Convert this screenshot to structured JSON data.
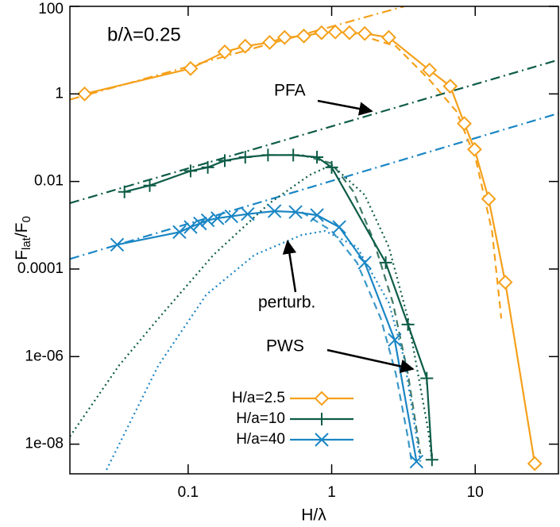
{
  "chart_data": {
    "type": "line",
    "xlabel": "H/λ",
    "ylabel": [
      "F",
      "lat",
      "/F",
      "0"
    ],
    "xscale": "log",
    "yscale": "log",
    "xlim": [
      0.015,
      38
    ],
    "ylim": [
      2.1e-09,
      100
    ],
    "xticks": [
      0.1,
      1,
      10
    ],
    "yticks": [
      100,
      1,
      0.01,
      0.0001,
      {
        "value": 1e-06,
        "label": "1e-06"
      },
      {
        "value": 1e-08,
        "label": "1e-08"
      }
    ],
    "legend": "lower center",
    "annotations": [
      "b/λ=0.25",
      "PFA",
      "perturb.",
      "PWS"
    ],
    "series": [
      {
        "name": "H/a=2.5",
        "color": "#f5a01a",
        "marker": "diamond",
        "x": [
          0.019,
          0.104,
          0.18,
          0.25,
          0.37,
          0.47,
          0.64,
          0.85,
          1.06,
          1.33,
          1.7,
          2.5,
          4.8,
          6.7,
          8.4,
          9.9,
          12.4,
          16.2,
          26
        ],
        "values": [
          1.0,
          3.8,
          9.1,
          12.3,
          15,
          19.5,
          21,
          25,
          26,
          25,
          24,
          19.5,
          3.5,
          1.5,
          0.21,
          0.054,
          0.004,
          5e-05,
          3.6e-09
        ]
      },
      {
        "name": "H/a=10",
        "color": "#0d5c47",
        "marker": "plus",
        "x": [
          0.036,
          0.054,
          0.104,
          0.137,
          0.18,
          0.25,
          0.36,
          0.54,
          0.79,
          1.0,
          2.38,
          3.4,
          4.6,
          5.0
        ],
        "values": [
          0.0058,
          0.0081,
          0.0174,
          0.021,
          0.03,
          0.036,
          0.04,
          0.04,
          0.036,
          0.021,
          0.00014,
          5.4e-06,
          3.2e-07,
          4.4e-09
        ]
      },
      {
        "name": "H/a=40",
        "color": "#1a86c4",
        "marker": "cross",
        "x": [
          0.032,
          0.087,
          0.104,
          0.121,
          0.137,
          0.16,
          0.2,
          0.26,
          0.4,
          0.56,
          0.79,
          1.13,
          1.7,
          2.75,
          3.9
        ],
        "values": [
          0.00036,
          0.0007,
          0.00091,
          0.0011,
          0.0013,
          0.00145,
          0.0016,
          0.0018,
          0.0021,
          0.002,
          0.0017,
          0.00091,
          0.00014,
          2.4e-06,
          4e-09
        ]
      }
    ],
    "curves": [
      {
        "color": "#f5a01a",
        "style": "dashdot",
        "x": [
          0.015,
          3.2
        ],
        "values": [
          0.74,
          100
        ]
      },
      {
        "color": "#0d5c47",
        "style": "dashdot",
        "x": [
          0.015,
          38
        ],
        "values": [
          0.0032,
          6
        ]
      },
      {
        "color": "#1a86c4",
        "style": "dashdot",
        "x": [
          0.015,
          38
        ],
        "values": [
          0.00017,
          0.36
        ]
      },
      {
        "color": "#f5a01a",
        "style": "dashed",
        "x": [
          1.33,
          2.8,
          4.8,
          7.4,
          10.1,
          13.1,
          15.2
        ],
        "values": [
          26,
          12.3,
          2.1,
          0.4,
          0.032,
          0.00074,
          7.4e-06
        ]
      },
      {
        "color": "#3f7a66",
        "style": "dashed",
        "x": [
          0.62,
          1,
          1.41,
          1.94,
          2.67,
          3.4,
          4.15
        ],
        "values": [
          0.04,
          0.026,
          0.006,
          0.00049,
          1.7e-05,
          4e-07,
          6e-09
        ]
      },
      {
        "color": "#3a98c8",
        "style": "dashed",
        "x": [
          0.62,
          1,
          1.5,
          2.2,
          2.8,
          3.4,
          3.6
        ],
        "values": [
          0.002,
          0.00074,
          0.00014,
          7.4e-06,
          4e-07,
          1.4e-08,
          4e-09
        ]
      },
      {
        "color": "#0d5c47",
        "style": "dotted",
        "x": [
          0.015,
          0.033,
          0.062,
          0.15,
          0.37,
          0.7,
          1,
          1.7,
          2.5,
          3.4,
          4.7,
          5.0
        ],
        "values": [
          1.5e-08,
          6.3e-07,
          7.4e-06,
          0.00021,
          0.0032,
          0.014,
          0.024,
          0.0049,
          0.00032,
          7.4e-06,
          2.1e-08,
          4.4e-09
        ]
      },
      {
        "color": "#1a86c4",
        "style": "dotted",
        "x": [
          0.027,
          0.062,
          0.134,
          0.29,
          0.62,
          0.9,
          1.5,
          2.5,
          3.2,
          4.15
        ],
        "values": [
          2.6e-09,
          6.3e-07,
          2.6e-05,
          0.00021,
          0.0006,
          0.00074,
          0.00032,
          1.7e-05,
          9e-07,
          4e-09
        ]
      }
    ]
  }
}
